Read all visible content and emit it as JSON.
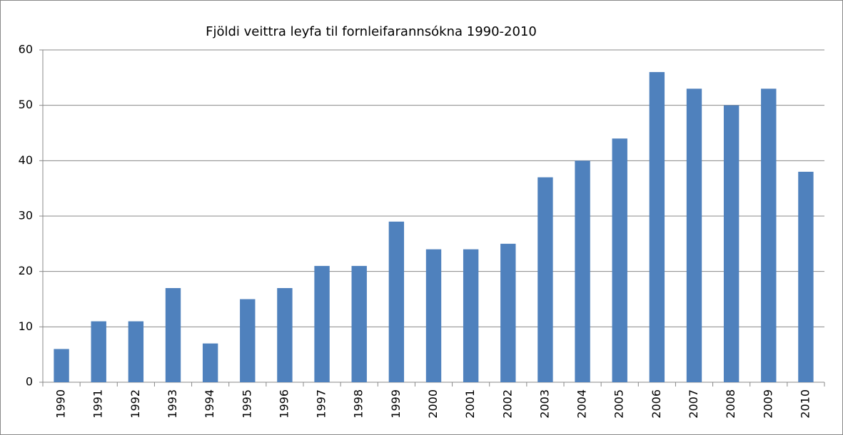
{
  "chart_data": {
    "type": "bar",
    "title": "Fjöldi veittra leyfa til fornleifarannsókna 1990-2010",
    "categories": [
      "1990",
      "1991",
      "1992",
      "1993",
      "1994",
      "1995",
      "1996",
      "1997",
      "1998",
      "1999",
      "2000",
      "2001",
      "2002",
      "2003",
      "2004",
      "2005",
      "2006",
      "2007",
      "2008",
      "2009",
      "2010"
    ],
    "values": [
      6,
      11,
      11,
      17,
      7,
      15,
      17,
      21,
      21,
      29,
      24,
      24,
      25,
      37,
      40,
      44,
      56,
      53,
      50,
      53,
      38
    ],
    "color": "#4f81bd",
    "ylim": [
      0,
      60
    ],
    "yticks": [
      0,
      10,
      20,
      30,
      40,
      50,
      60
    ],
    "grid": true
  }
}
